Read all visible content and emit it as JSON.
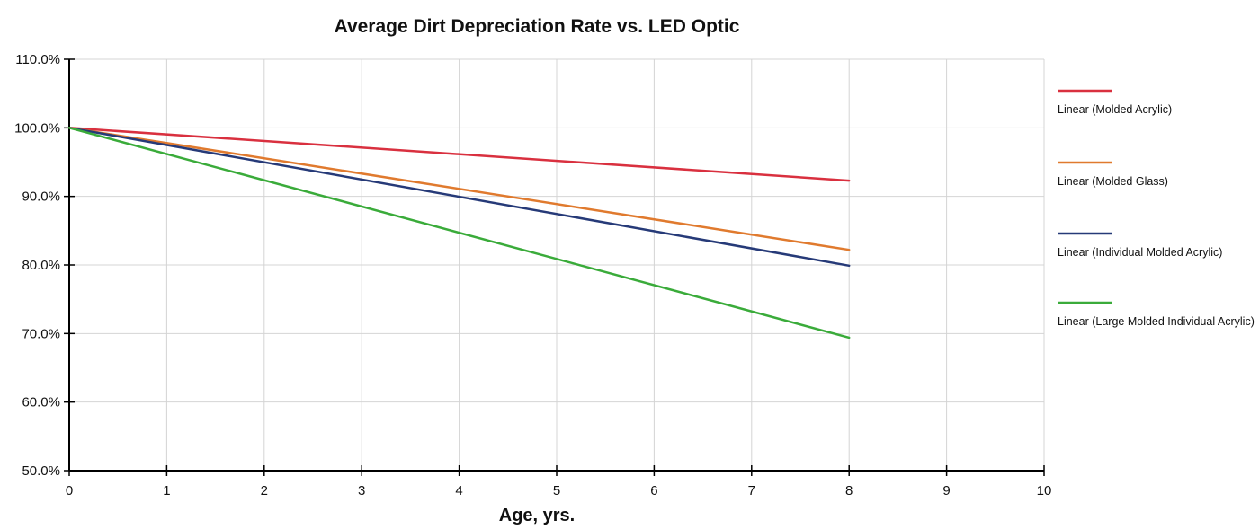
{
  "chart_data": {
    "type": "line",
    "title": "Average Dirt Depreciation Rate vs. LED Optic",
    "xlabel": "Age, yrs.",
    "ylabel": "",
    "xlim": [
      0,
      10
    ],
    "ylim": [
      50,
      110
    ],
    "x_ticks": [
      "0",
      "1",
      "2",
      "3",
      "4",
      "5",
      "6",
      "7",
      "8",
      "9",
      "10"
    ],
    "y_ticks": [
      "50.0%",
      "60.0%",
      "70.0%",
      "80.0%",
      "90.0%",
      "100.0%",
      "110.0%"
    ],
    "grid": true,
    "legend_position": "right",
    "series": [
      {
        "name": "Linear (Molded Acrylic)",
        "color": "#d9303f",
        "x": [
          0,
          8
        ],
        "y": [
          100.0,
          92.3
        ]
      },
      {
        "name": "Linear (Molded Glass)",
        "color": "#e07a2e",
        "x": [
          0,
          8
        ],
        "y": [
          100.0,
          82.2
        ]
      },
      {
        "name": "Linear (Individual Molded Acrylic)",
        "color": "#263a78",
        "x": [
          0,
          8
        ],
        "y": [
          100.0,
          79.9
        ]
      },
      {
        "name": "Linear (Large Molded Individual Acrylic)",
        "color": "#3aab3a",
        "x": [
          0,
          8
        ],
        "y": [
          100.0,
          69.4
        ]
      }
    ]
  }
}
